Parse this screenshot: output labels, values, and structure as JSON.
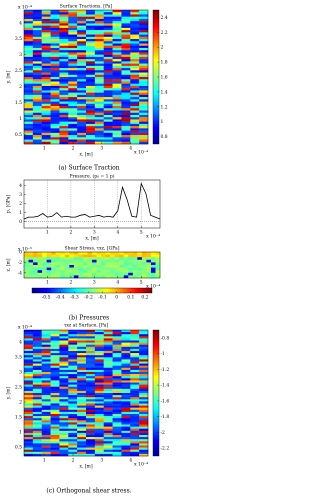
{
  "chart_data": [
    {
      "type": "heatmap",
      "title": "Surface Tractions, [Pa]",
      "x_label": "x, [m]",
      "y_label": "y, [m]",
      "xlim": [
        0.3,
        4.6
      ],
      "xticks": [
        1,
        2,
        3,
        4
      ],
      "x_offset": "x 10⁻⁴",
      "ylim": [
        0.2,
        4.4
      ],
      "yticks": [
        0.5,
        1,
        1.5,
        2,
        2.5,
        3,
        3.5,
        4
      ],
      "y_offset": "x 10⁻⁴",
      "colorbar": "vertical",
      "clim": [
        0.7,
        2.5
      ],
      "cticks": [
        0.8,
        1,
        1.2,
        1.4,
        1.6,
        1.8,
        2,
        2.2,
        2.4
      ]
    },
    {
      "type": "line",
      "title": "Pressure, (p₀ = 1 p)",
      "x_label": "x, [m]",
      "y_label": "p, [GPa]",
      "xlim": [
        0,
        5.8
      ],
      "xticks": [
        1,
        2,
        3,
        4,
        5
      ],
      "x_offset": "x 10⁻⁴",
      "ylim": [
        -0.7,
        4.6
      ],
      "yticks": [
        0,
        1,
        2,
        3,
        4
      ],
      "grid": true,
      "color": "#000000",
      "x": [
        0,
        0.2,
        0.4,
        0.6,
        0.8,
        1,
        1.2,
        1.4,
        1.6,
        1.8,
        2,
        2.2,
        2.4,
        2.6,
        2.8,
        3,
        3.2,
        3.4,
        3.6,
        3.8,
        4,
        4.2,
        4.4,
        4.6,
        4.8,
        5,
        5.2,
        5.4,
        5.6,
        5.8
      ],
      "values": [
        0.3,
        0.5,
        0.5,
        0.6,
        0.9,
        0.5,
        0.6,
        1.0,
        0.5,
        0.6,
        0.5,
        0.5,
        0.7,
        0.8,
        0.5,
        0.6,
        0.7,
        0.5,
        0.6,
        0.5,
        1.2,
        3.8,
        2.4,
        0.6,
        0.5,
        4.2,
        3.1,
        0.7,
        0.5,
        0.3
      ]
    },
    {
      "type": "heatmap",
      "title": "Shear Stress, τxz, [GPa]",
      "y_label": "z, [m]",
      "xlim": [
        0,
        5.8
      ],
      "xticks": [
        1,
        2,
        3,
        4,
        5
      ],
      "x_offset": "x 10⁻⁴",
      "ylim": [
        -5,
        0
      ],
      "yticks": [
        -4,
        -2,
        0
      ],
      "y_offset": "x 10⁻⁵",
      "colorbar": "horizontal",
      "clim": [
        -0.6,
        0.25
      ],
      "cticks": [
        -0.5,
        -0.4,
        -0.3,
        -0.2,
        -0.1,
        0,
        0.1,
        0.2
      ]
    },
    {
      "type": "heatmap",
      "title": "τxz at Surface, [Pa]",
      "x_label": "x, [m]",
      "y_label": "y, [m]",
      "xlim": [
        0.3,
        4.6
      ],
      "xticks": [
        1,
        2,
        3,
        4
      ],
      "x_offset": "x 10⁻⁴",
      "ylim": [
        0.2,
        4.4
      ],
      "yticks": [
        0.5,
        1,
        1.5,
        2,
        2.5,
        3,
        3.5,
        4
      ],
      "y_offset": "x 10⁻⁴",
      "colorbar": "vertical",
      "clim": [
        -2.3,
        -0.7
      ],
      "cticks": [
        -2.2,
        -2,
        -1.8,
        -1.6,
        -1.4,
        -1.2,
        -1,
        -0.8
      ]
    }
  ],
  "captions": [
    "(a) Surface Traction",
    "(b) Pressures",
    "(c) Orthogonal shear stress."
  ]
}
